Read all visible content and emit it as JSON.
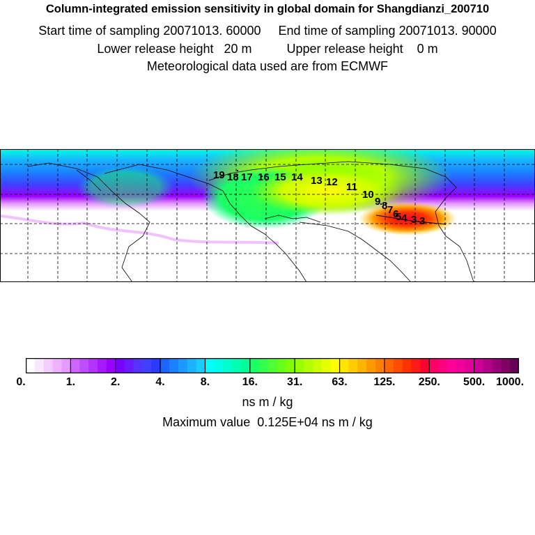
{
  "header": {
    "title": "Column-integrated emission sensitivity in global domain for Shangdianzi_200710",
    "sampling": "Start time of sampling 20071013. 60000     End time of sampling 20071013. 90000",
    "release": "Lower release height   20 m          Upper release height    0 m",
    "met": "Meteorological data used are from ECMWF"
  },
  "map": {
    "gridlines": "dashed",
    "trajectory_labels": [
      "19",
      "18",
      "17",
      "16",
      "15",
      "14",
      "13",
      "12",
      "11",
      "10",
      "9",
      "8",
      "7",
      "6",
      "5",
      "4",
      "3",
      "3"
    ]
  },
  "colorbar": {
    "tick_labels": [
      "0.",
      "1.",
      "2.",
      "4.",
      "8.",
      "16.",
      "31.",
      "63.",
      "125.",
      "250.",
      "500.",
      "1000."
    ],
    "colors": [
      "#ffffff",
      "#fbe6ff",
      "#f5ccff",
      "#eeb2ff",
      "#e699ff",
      "#cc66ff",
      "#c04cff",
      "#b333ff",
      "#a619ff",
      "#9900ff",
      "#7a00ff",
      "#6a1aff",
      "#5533ff",
      "#4040ff",
      "#2a3aff",
      "#1a66ff",
      "#1a80ff",
      "#1a99ff",
      "#1ab3ff",
      "#1accff",
      "#00ffff",
      "#00ffe6",
      "#00ffcc",
      "#00ffb3",
      "#00ff99",
      "#1aff66",
      "#33ff4d",
      "#4dff33",
      "#66ff1a",
      "#80ff00",
      "#99ff00",
      "#b3ff00",
      "#ccff00",
      "#e6ff00",
      "#ffff00",
      "#ffe600",
      "#ffcc00",
      "#ffb300",
      "#ff9900",
      "#ff8000",
      "#ff6600",
      "#ff4d00",
      "#ff3300",
      "#ff1a1a",
      "#ff0033",
      "#ff0066",
      "#ff0080",
      "#ff0099",
      "#f0009a",
      "#e00099",
      "#cc0099",
      "#b30088",
      "#990077",
      "#800066",
      "#660055"
    ]
  },
  "units": "ns m / kg",
  "max_value": "Maximum value  0.125E+04 ns m / kg"
}
